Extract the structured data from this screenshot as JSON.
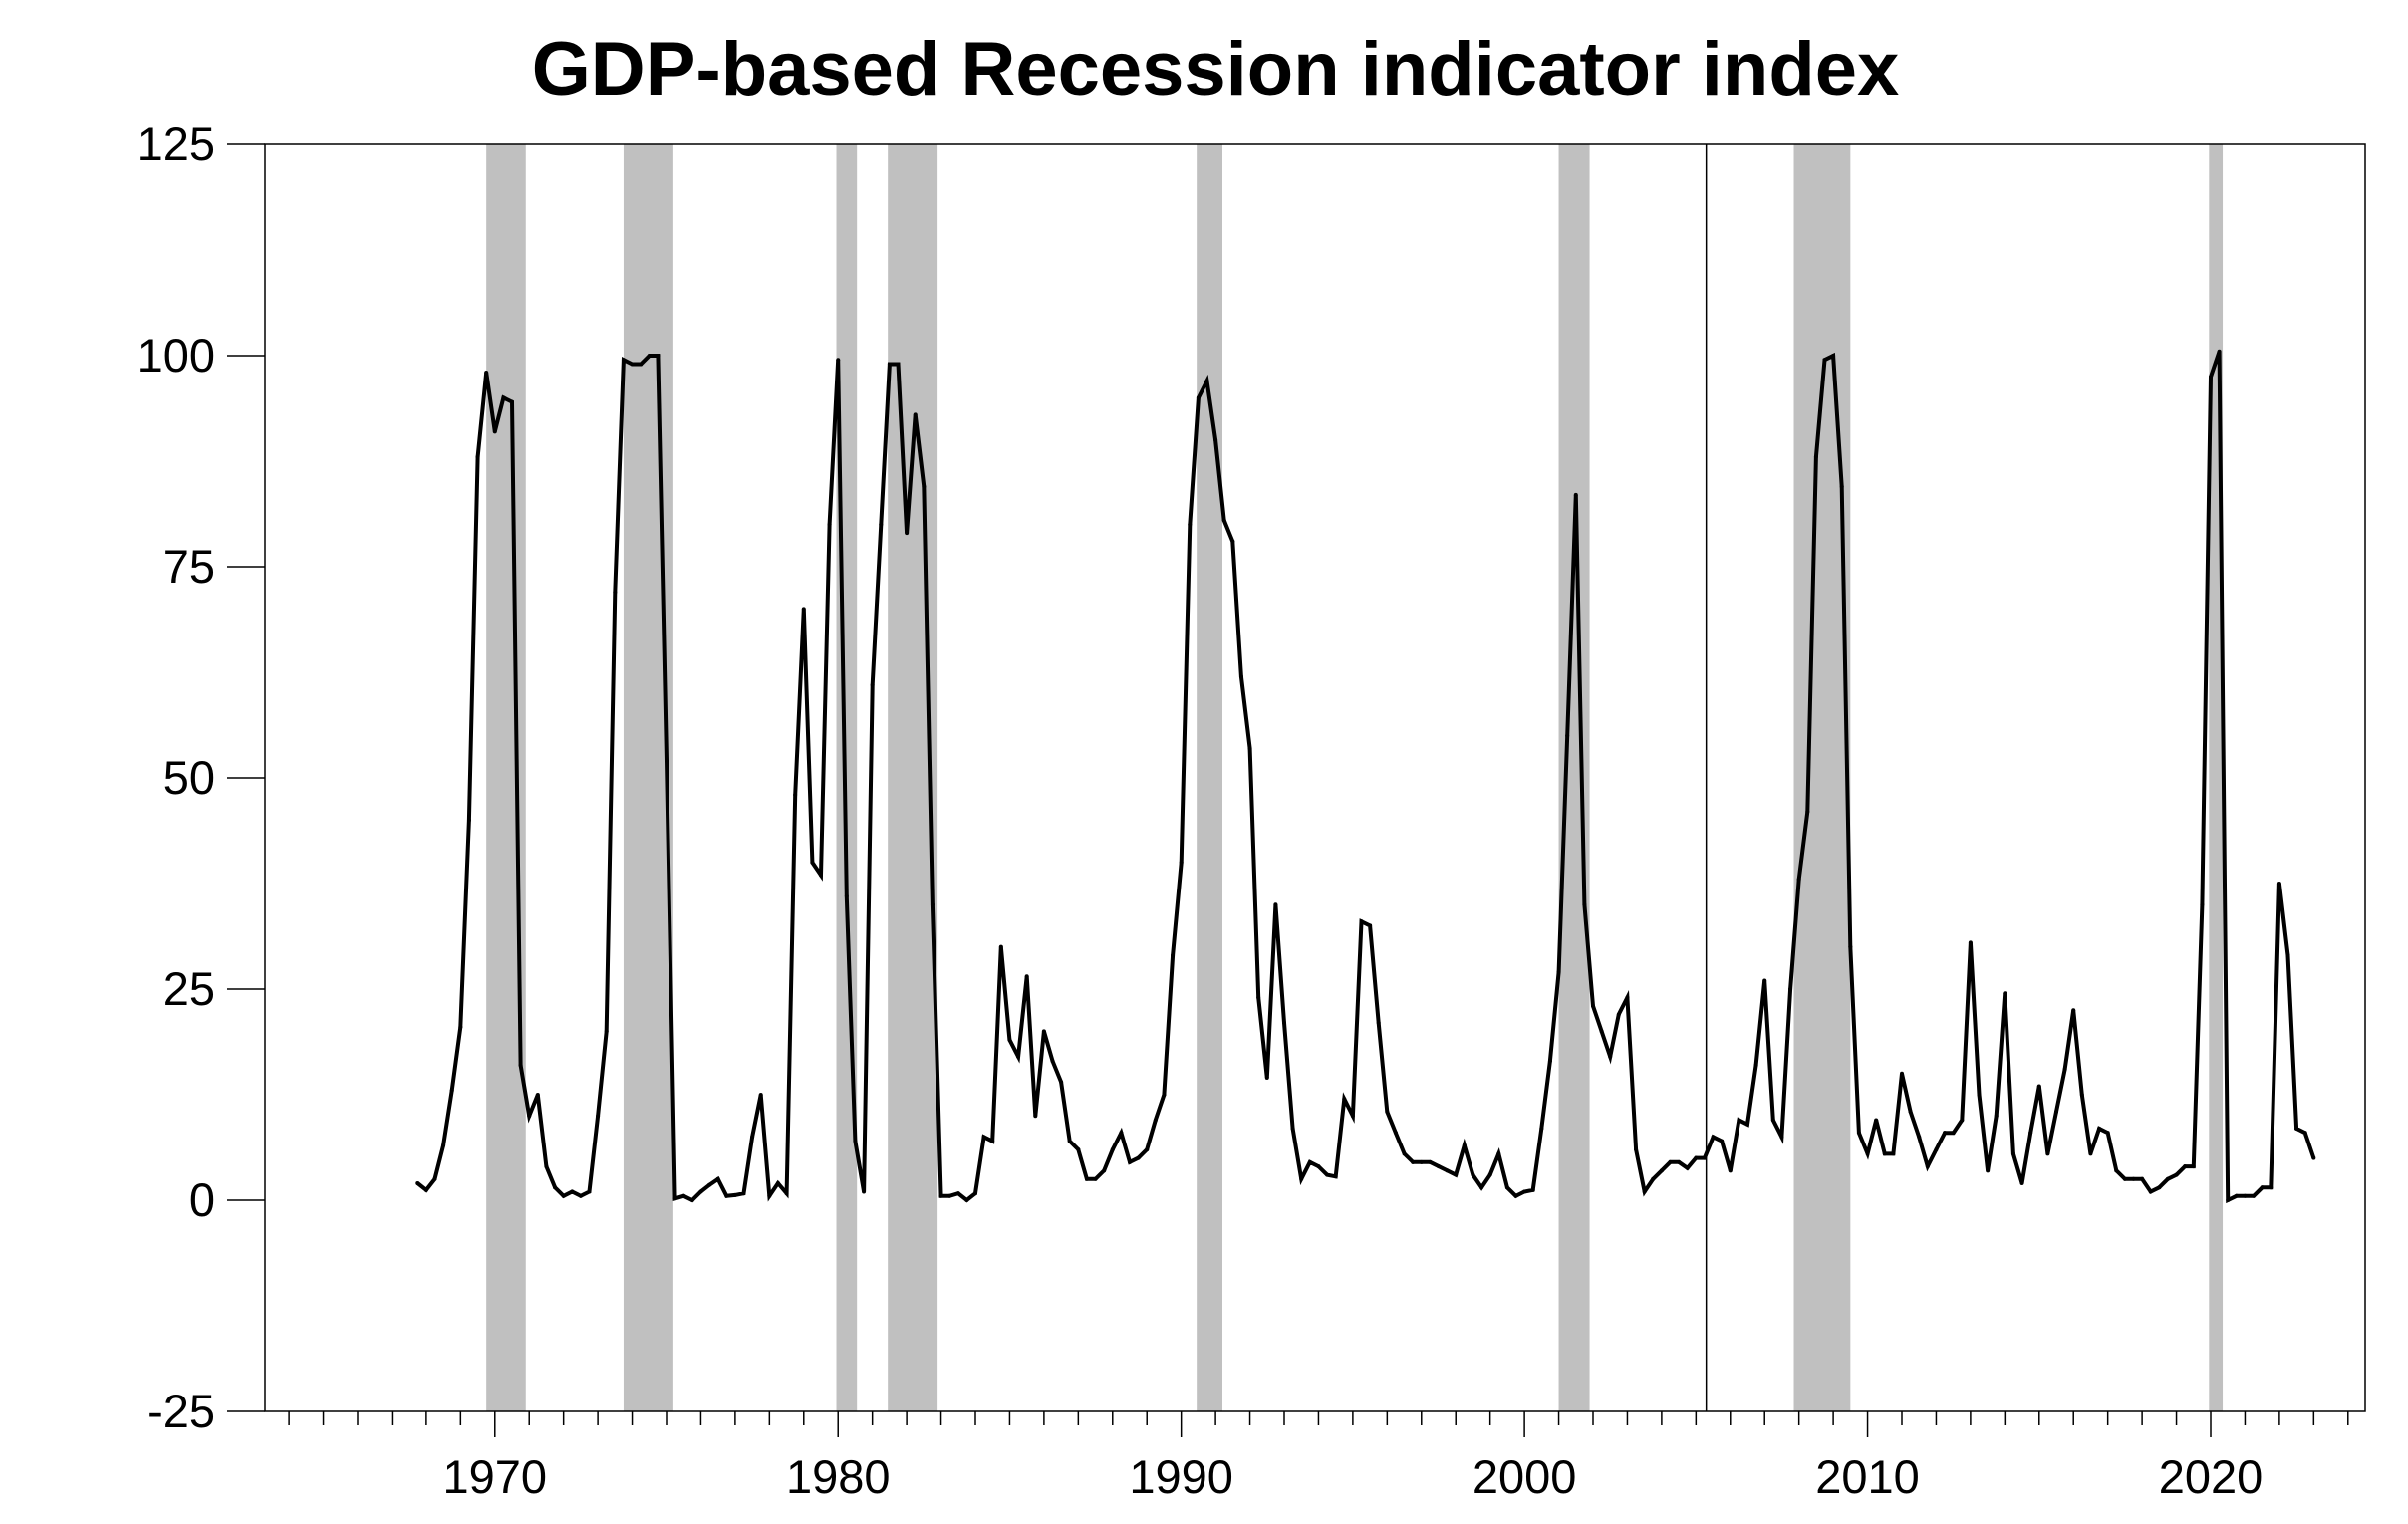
{
  "chart_data": {
    "type": "line",
    "title": "GDP-based Recession indicator index",
    "xlabel": "",
    "ylabel": "",
    "xlim": [
      1963.3,
      2024.5
    ],
    "ylim": [
      -25,
      125
    ],
    "grid": false,
    "legend": "none",
    "x_ticks": [
      1970,
      1980,
      1990,
      2000,
      2010,
      2020
    ],
    "y_ticks": [
      -25,
      0,
      25,
      50,
      75,
      100,
      125
    ],
    "x_minor_ticks_per_year": 1,
    "reference_line_x": 2005.3,
    "recession_shading": [
      [
        1969.75,
        1970.9
      ],
      [
        1973.75,
        1975.2
      ],
      [
        1979.95,
        1980.55
      ],
      [
        1981.45,
        1982.9
      ],
      [
        1990.45,
        1991.2
      ],
      [
        2001.0,
        2001.9
      ],
      [
        2007.85,
        2009.5
      ],
      [
        2019.95,
        2020.35
      ]
    ],
    "series": [
      {
        "values": [
          [
            1967.75,
            2.0
          ],
          [
            1968.0,
            1.2
          ],
          [
            1968.25,
            2.5
          ],
          [
            1968.5,
            6.5
          ],
          [
            1968.75,
            13.0
          ],
          [
            1969.0,
            20.5
          ],
          [
            1969.25,
            45.0
          ],
          [
            1969.5,
            88.0
          ],
          [
            1969.75,
            98.0
          ],
          [
            1970.0,
            91.0
          ],
          [
            1970.25,
            95.0
          ],
          [
            1970.5,
            94.5
          ],
          [
            1970.75,
            16.0
          ],
          [
            1971.0,
            10.0
          ],
          [
            1971.25,
            12.5
          ],
          [
            1971.5,
            4.0
          ],
          [
            1971.75,
            1.5
          ],
          [
            1972.0,
            0.5
          ],
          [
            1972.25,
            1.0
          ],
          [
            1972.5,
            0.5
          ],
          [
            1972.75,
            1.0
          ],
          [
            1973.0,
            10.0
          ],
          [
            1973.25,
            20.0
          ],
          [
            1973.5,
            72.0
          ],
          [
            1973.75,
            99.5
          ],
          [
            1974.0,
            99.0
          ],
          [
            1974.25,
            99.0
          ],
          [
            1974.5,
            100.0
          ],
          [
            1974.75,
            100.0
          ],
          [
            1975.0,
            52.0
          ],
          [
            1975.25,
            0.2
          ],
          [
            1975.5,
            0.5
          ],
          [
            1975.75,
            0.0
          ],
          [
            1976.0,
            1.0
          ],
          [
            1976.25,
            1.8
          ],
          [
            1976.5,
            2.5
          ],
          [
            1976.75,
            0.5
          ],
          [
            1977.0,
            0.6
          ],
          [
            1977.25,
            0.8
          ],
          [
            1977.5,
            7.5
          ],
          [
            1977.75,
            12.5
          ],
          [
            1978.0,
            0.5
          ],
          [
            1978.25,
            2.0
          ],
          [
            1978.5,
            0.8
          ],
          [
            1978.75,
            48.0
          ],
          [
            1979.0,
            70.0
          ],
          [
            1979.25,
            40.0
          ],
          [
            1979.5,
            38.5
          ],
          [
            1979.75,
            80.0
          ],
          [
            1980.0,
            99.5
          ],
          [
            1980.25,
            36.0
          ],
          [
            1980.5,
            7.0
          ],
          [
            1980.75,
            1.0
          ],
          [
            1981.0,
            61.0
          ],
          [
            1981.25,
            80.0
          ],
          [
            1981.5,
            99.0
          ],
          [
            1981.75,
            99.0
          ],
          [
            1982.0,
            79.0
          ],
          [
            1982.25,
            93.0
          ],
          [
            1982.5,
            84.5
          ],
          [
            1982.75,
            35.0
          ],
          [
            1983.0,
            0.5
          ],
          [
            1983.25,
            0.5
          ],
          [
            1983.5,
            0.8
          ],
          [
            1983.75,
            0.0
          ],
          [
            1984.0,
            0.8
          ],
          [
            1984.25,
            7.5
          ],
          [
            1984.5,
            7.0
          ],
          [
            1984.75,
            30.0
          ],
          [
            1985.0,
            19.0
          ],
          [
            1985.25,
            17.0
          ],
          [
            1985.5,
            26.5
          ],
          [
            1985.75,
            10.0
          ],
          [
            1986.0,
            20.0
          ],
          [
            1986.25,
            16.5
          ],
          [
            1986.5,
            14.0
          ],
          [
            1986.75,
            7.0
          ],
          [
            1987.0,
            6.0
          ],
          [
            1987.25,
            2.5
          ],
          [
            1987.5,
            2.5
          ],
          [
            1987.75,
            3.5
          ],
          [
            1988.0,
            6.0
          ],
          [
            1988.25,
            8.0
          ],
          [
            1988.5,
            4.5
          ],
          [
            1988.75,
            5.0
          ],
          [
            1989.0,
            6.0
          ],
          [
            1989.25,
            9.5
          ],
          [
            1989.5,
            12.5
          ],
          [
            1989.75,
            29.0
          ],
          [
            1990.0,
            40.0
          ],
          [
            1990.25,
            80.0
          ],
          [
            1990.5,
            95.0
          ],
          [
            1990.75,
            97.0
          ],
          [
            1991.0,
            90.0
          ],
          [
            1991.25,
            80.5
          ],
          [
            1991.5,
            78.0
          ],
          [
            1991.75,
            62.0
          ],
          [
            1992.0,
            53.5
          ],
          [
            1992.25,
            24.0
          ],
          [
            1992.5,
            14.5
          ],
          [
            1992.75,
            35.0
          ],
          [
            1993.0,
            21.0
          ],
          [
            1993.25,
            8.5
          ],
          [
            1993.5,
            2.5
          ],
          [
            1993.75,
            4.5
          ],
          [
            1994.0,
            4.0
          ],
          [
            1994.25,
            3.0
          ],
          [
            1994.5,
            2.8
          ],
          [
            1994.75,
            12.0
          ],
          [
            1995.0,
            10.0
          ],
          [
            1995.25,
            33.0
          ],
          [
            1995.5,
            32.5
          ],
          [
            1995.75,
            21.0
          ],
          [
            1996.0,
            10.5
          ],
          [
            1996.25,
            8.0
          ],
          [
            1996.5,
            5.5
          ],
          [
            1996.75,
            4.5
          ],
          [
            1997.0,
            4.5
          ],
          [
            1997.25,
            4.5
          ],
          [
            1997.5,
            4.0
          ],
          [
            1997.75,
            3.5
          ],
          [
            1998.0,
            3.0
          ],
          [
            1998.25,
            6.5
          ],
          [
            1998.5,
            3.0
          ],
          [
            1998.75,
            1.5
          ],
          [
            1999.0,
            3.0
          ],
          [
            1999.25,
            5.5
          ],
          [
            1999.5,
            1.5
          ],
          [
            1999.75,
            0.5
          ],
          [
            2000.0,
            1.0
          ],
          [
            2000.25,
            1.2
          ],
          [
            2000.5,
            8.5
          ],
          [
            2000.75,
            16.5
          ],
          [
            2001.0,
            27.0
          ],
          [
            2001.25,
            55.0
          ],
          [
            2001.5,
            83.5
          ],
          [
            2001.75,
            35.0
          ],
          [
            2002.0,
            23.0
          ],
          [
            2002.25,
            20.0
          ],
          [
            2002.5,
            17.0
          ],
          [
            2002.75,
            22.0
          ],
          [
            2003.0,
            24.0
          ],
          [
            2003.25,
            6.0
          ],
          [
            2003.5,
            1.0
          ],
          [
            2003.75,
            2.5
          ],
          [
            2004.0,
            3.5
          ],
          [
            2004.25,
            4.5
          ],
          [
            2004.5,
            4.5
          ],
          [
            2004.75,
            3.8
          ],
          [
            2005.0,
            5.0
          ],
          [
            2005.25,
            5.0
          ],
          [
            2005.5,
            7.5
          ],
          [
            2005.75,
            7.0
          ],
          [
            2006.0,
            3.5
          ],
          [
            2006.25,
            9.5
          ],
          [
            2006.5,
            9.0
          ],
          [
            2006.75,
            16.0
          ],
          [
            2007.0,
            26.0
          ],
          [
            2007.25,
            9.5
          ],
          [
            2007.5,
            7.5
          ],
          [
            2007.75,
            25.0
          ],
          [
            2008.0,
            38.0
          ],
          [
            2008.25,
            46.0
          ],
          [
            2008.5,
            88.0
          ],
          [
            2008.75,
            99.5
          ],
          [
            2009.0,
            100.0
          ],
          [
            2009.25,
            84.5
          ],
          [
            2009.5,
            30.0
          ],
          [
            2009.75,
            8.0
          ],
          [
            2010.0,
            5.5
          ],
          [
            2010.25,
            9.5
          ],
          [
            2010.5,
            5.5
          ],
          [
            2010.75,
            5.5
          ],
          [
            2011.0,
            15.0
          ],
          [
            2011.25,
            10.5
          ],
          [
            2011.5,
            7.5
          ],
          [
            2011.75,
            4.0
          ],
          [
            2012.0,
            6.0
          ],
          [
            2012.25,
            8.0
          ],
          [
            2012.5,
            8.0
          ],
          [
            2012.75,
            9.5
          ],
          [
            2013.0,
            30.5
          ],
          [
            2013.25,
            12.5
          ],
          [
            2013.5,
            3.5
          ],
          [
            2013.75,
            10.0
          ],
          [
            2014.0,
            24.5
          ],
          [
            2014.25,
            5.5
          ],
          [
            2014.5,
            2.0
          ],
          [
            2014.75,
            8.0
          ],
          [
            2015.0,
            13.5
          ],
          [
            2015.25,
            5.5
          ],
          [
            2015.5,
            10.5
          ],
          [
            2015.75,
            15.5
          ],
          [
            2016.0,
            22.5
          ],
          [
            2016.25,
            12.5
          ],
          [
            2016.5,
            5.5
          ],
          [
            2016.75,
            8.5
          ],
          [
            2017.0,
            8.0
          ],
          [
            2017.25,
            3.5
          ],
          [
            2017.5,
            2.5
          ],
          [
            2017.75,
            2.5
          ],
          [
            2018.0,
            2.5
          ],
          [
            2018.25,
            1.0
          ],
          [
            2018.5,
            1.5
          ],
          [
            2018.75,
            2.5
          ],
          [
            2019.0,
            3.0
          ],
          [
            2019.25,
            4.0
          ],
          [
            2019.5,
            4.0
          ],
          [
            2019.75,
            35.0
          ],
          [
            2020.0,
            97.5
          ],
          [
            2020.25,
            100.5
          ],
          [
            2020.5,
            0.0
          ],
          [
            2020.75,
            0.5
          ],
          [
            2021.0,
            0.5
          ],
          [
            2021.25,
            0.5
          ],
          [
            2021.5,
            1.5
          ],
          [
            2021.75,
            1.5
          ],
          [
            2022.0,
            37.5
          ],
          [
            2022.25,
            29.0
          ],
          [
            2022.5,
            8.5
          ],
          [
            2022.75,
            8.0
          ],
          [
            2023.0,
            5.0
          ]
        ]
      }
    ]
  }
}
